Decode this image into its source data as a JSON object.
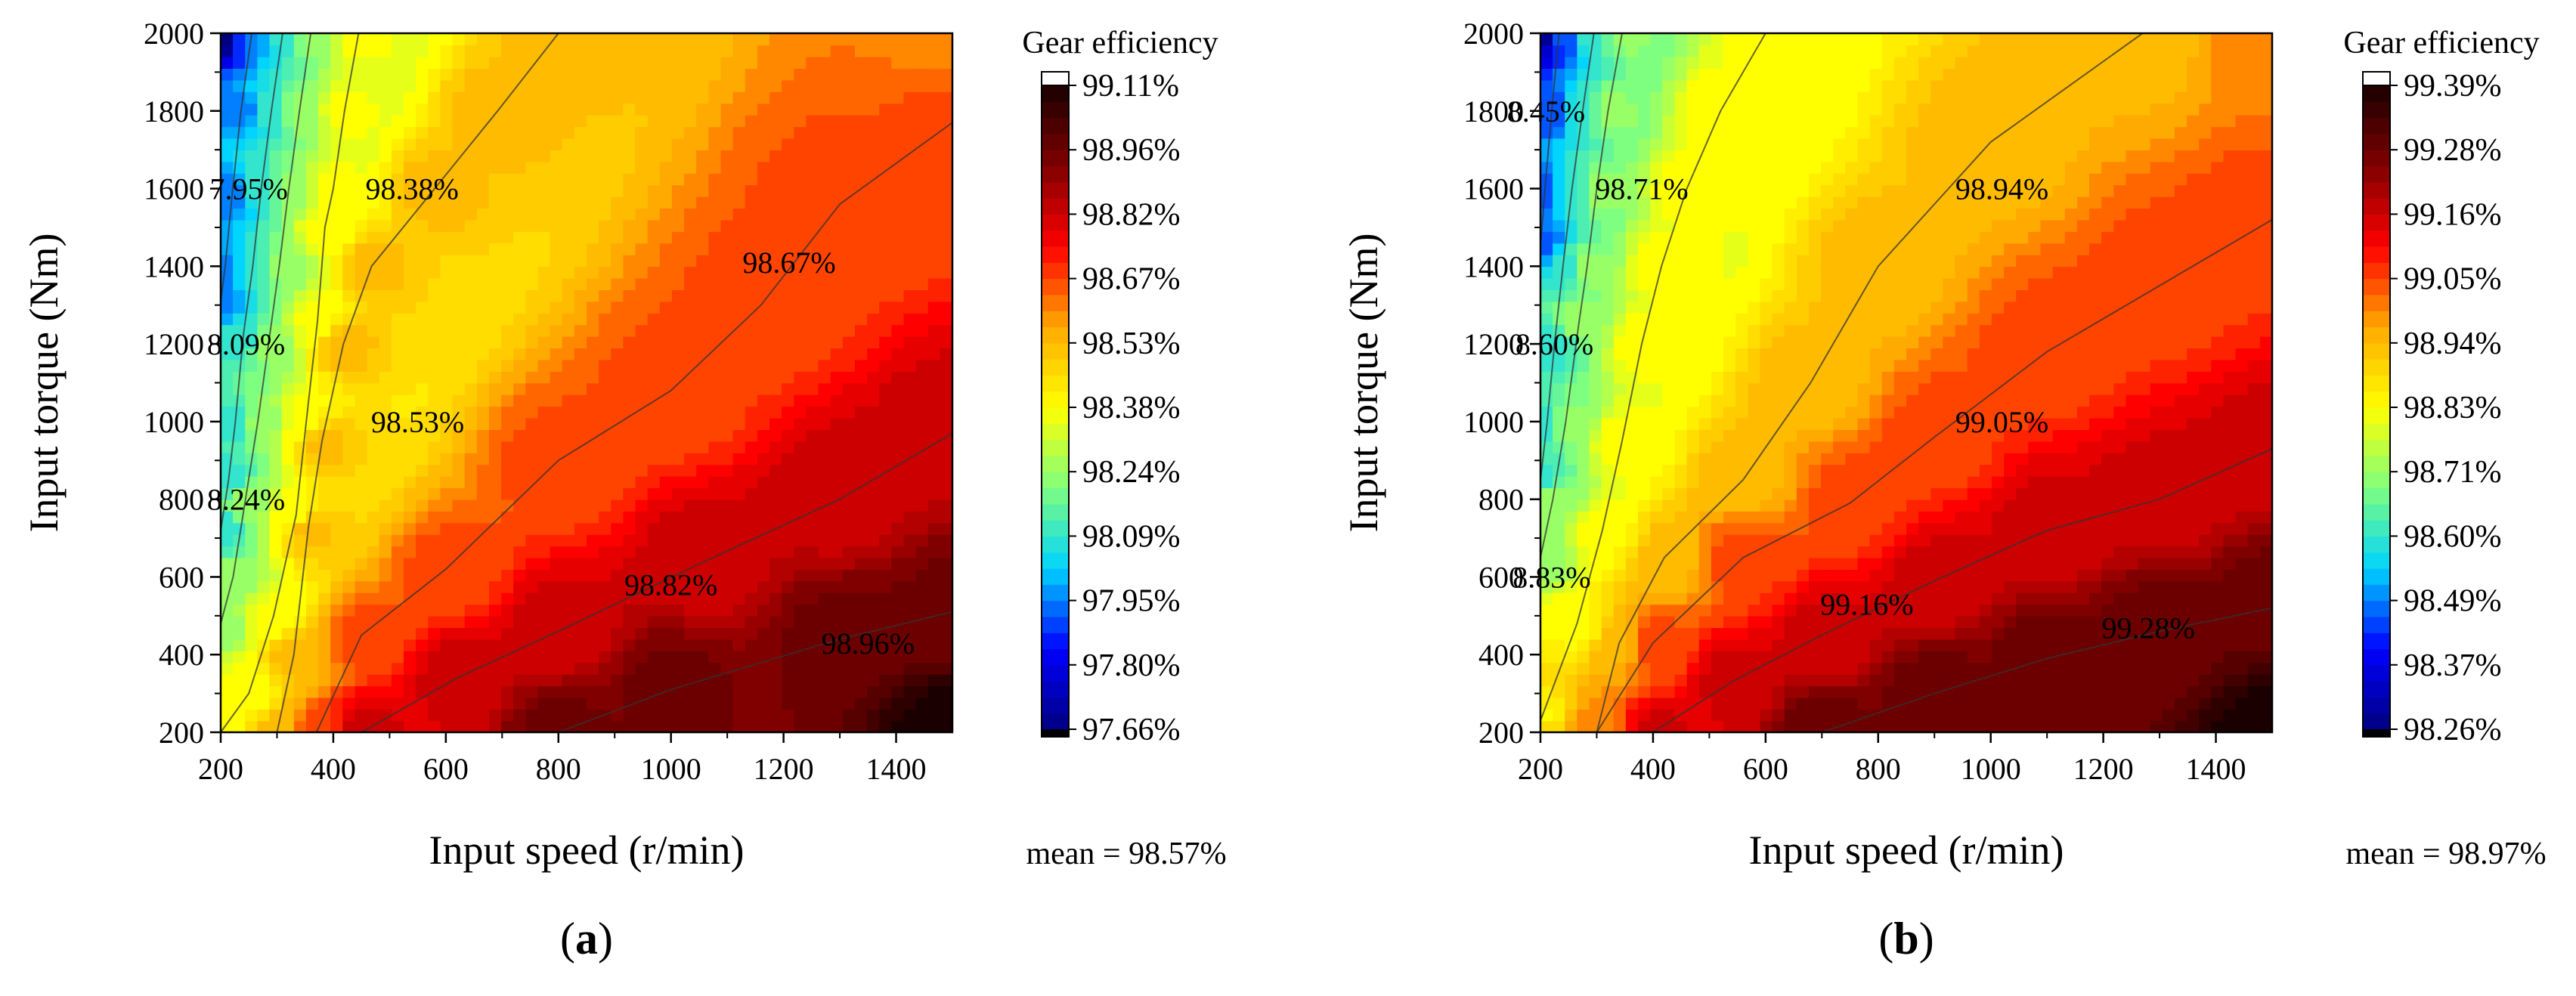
{
  "chart_data": [
    {
      "type": "heatmap",
      "panel_label": "a",
      "xlabel": "Input speed (r/min)",
      "ylabel": "Input torque (Nm)",
      "xlim": [
        200,
        1500
      ],
      "ylim": [
        200,
        2000
      ],
      "x_ticks": [
        200,
        400,
        600,
        800,
        1000,
        1200,
        1400
      ],
      "y_ticks": [
        200,
        400,
        600,
        800,
        1000,
        1200,
        1400,
        1600,
        1800,
        2000
      ],
      "colorbar_title": "Gear efficiency",
      "colorbar_ticks": [
        "99.11%",
        "98.96%",
        "98.82%",
        "98.67%",
        "98.53%",
        "98.38%",
        "98.24%",
        "98.09%",
        "97.95%",
        "97.80%",
        "97.66%"
      ],
      "zlim": [
        97.66,
        99.11
      ],
      "mean_text": "mean = 98.57%",
      "contours": [
        {
          "value": 97.95,
          "label": "7.95%",
          "points": [
            [
              255,
              2000
            ],
            [
              236,
              1800
            ],
            [
              220,
              1580
            ],
            [
              208,
              1400
            ],
            [
              200,
              1310
            ]
          ],
          "label_at": [
            250,
            1600
          ]
        },
        {
          "value": 98.09,
          "label": "8.09%",
          "points": [
            [
              310,
              2000
            ],
            [
              290,
              1800
            ],
            [
              272,
              1600
            ],
            [
              257,
              1400
            ],
            [
              240,
              1220
            ],
            [
              226,
              1000
            ],
            [
              214,
              850
            ],
            [
              200,
              720
            ]
          ],
          "label_at": [
            245,
            1200
          ]
        },
        {
          "value": 98.24,
          "label": "8.24%",
          "points": [
            [
              360,
              2000
            ],
            [
              340,
              1800
            ],
            [
              321,
              1600
            ],
            [
              304,
              1400
            ],
            [
              285,
              1200
            ],
            [
              266,
              1000
            ],
            [
              244,
              800
            ],
            [
              222,
              600
            ],
            [
              200,
              480
            ]
          ],
          "label_at": [
            245,
            800
          ]
        },
        {
          "value": 98.38,
          "label": "98.38%",
          "points": [
            [
              445,
              2000
            ],
            [
              420,
              1800
            ],
            [
              400,
              1600
            ],
            [
              385,
              1500
            ],
            [
              372,
              1260
            ],
            [
              352,
              1000
            ],
            [
              334,
              760
            ],
            [
              294,
              500
            ],
            [
              250,
              300
            ],
            [
              200,
              200
            ]
          ],
          "label_at": [
            540,
            1600
          ]
        },
        {
          "value": 98.53,
          "label": "98.53%",
          "points": [
            [
              800,
              2000
            ],
            [
              692,
              1800
            ],
            [
              580,
              1600
            ],
            [
              468,
              1400
            ],
            [
              418,
              1200
            ],
            [
              380,
              950
            ],
            [
              356,
              730
            ],
            [
              330,
              400
            ],
            [
              300,
              200
            ]
          ],
          "label_at": [
            550,
            1000
          ]
        },
        {
          "value": 98.67,
          "label": "98.67%",
          "points": [
            [
              1500,
              1770
            ],
            [
              1300,
              1560
            ],
            [
              1160,
              1300
            ],
            [
              1000,
              1080
            ],
            [
              800,
              900
            ],
            [
              600,
              620
            ],
            [
              450,
              450
            ],
            [
              370,
              200
            ]
          ],
          "label_at": [
            1210,
            1410
          ]
        },
        {
          "value": 98.82,
          "label": "98.82%",
          "points": [
            [
              1500,
              970
            ],
            [
              1300,
              800
            ],
            [
              1060,
              640
            ],
            [
              800,
              460
            ],
            [
              620,
              340
            ],
            [
              450,
              200
            ]
          ],
          "label_at": [
            1000,
            580
          ]
        },
        {
          "value": 98.96,
          "label": "98.96%",
          "points": [
            [
              1500,
              510
            ],
            [
              1300,
              440
            ],
            [
              1000,
              310
            ],
            [
              800,
              200
            ]
          ],
          "label_at": [
            1350,
            430
          ]
        }
      ],
      "color_field": {
        "model": "weighted inverse-distance interpolation between contour points; max 99.11 at (1500, 200), min 97.66 at (200, 2000)",
        "extremes": [
          {
            "x": 1500,
            "y": 200,
            "z": 99.11
          },
          {
            "x": 200,
            "y": 2000,
            "z": 97.66
          },
          {
            "x": 200,
            "y": 200,
            "z": 98.38
          },
          {
            "x": 1500,
            "y": 2000,
            "z": 98.6
          }
        ]
      }
    },
    {
      "type": "heatmap",
      "panel_label": "b",
      "xlabel": "Input speed (r/min)",
      "ylabel": "Input torque (Nm)",
      "xlim": [
        200,
        1500
      ],
      "ylim": [
        200,
        2000
      ],
      "x_ticks": [
        200,
        400,
        600,
        800,
        1000,
        1200,
        1400
      ],
      "y_ticks": [
        200,
        400,
        600,
        800,
        1000,
        1200,
        1400,
        1600,
        1800,
        2000
      ],
      "colorbar_title": "Gear efficiency",
      "colorbar_ticks": [
        "99.39%",
        "99.28%",
        "99.16%",
        "99.05%",
        "98.94%",
        "98.83%",
        "98.71%",
        "98.60%",
        "98.49%",
        "98.37%",
        "98.26%"
      ],
      "zlim": [
        98.26,
        99.39
      ],
      "mean_text": "mean = 98.97%",
      "contours": [
        {
          "value": 98.45,
          "label": "8.45%",
          "points": [
            [
              233,
              2000
            ],
            [
              220,
              1800
            ],
            [
              208,
              1600
            ],
            [
              200,
              1450
            ]
          ],
          "label_at": [
            210,
            1800
          ]
        },
        {
          "value": 98.6,
          "label": "8.60%",
          "points": [
            [
              295,
              2000
            ],
            [
              275,
              1800
            ],
            [
              256,
              1600
            ],
            [
              240,
              1400
            ],
            [
              225,
              1200
            ],
            [
              212,
              1000
            ],
            [
              200,
              850
            ]
          ],
          "label_at": [
            225,
            1200
          ]
        },
        {
          "value": 98.71,
          "label": "98.71%",
          "points": [
            [
              345,
              2000
            ],
            [
              320,
              1800
            ],
            [
              300,
              1600
            ],
            [
              283,
              1400
            ],
            [
              268,
              1250
            ],
            [
              245,
              1000
            ],
            [
              222,
              800
            ],
            [
              200,
              650
            ]
          ],
          "label_at": [
            380,
            1600
          ]
        },
        {
          "value": 98.83,
          "label": "8.83%",
          "points": [
            [
              600,
              2000
            ],
            [
              520,
              1800
            ],
            [
              460,
              1600
            ],
            [
              415,
              1400
            ],
            [
              380,
              1200
            ],
            [
              345,
              950
            ],
            [
              310,
              720
            ],
            [
              265,
              480
            ],
            [
              200,
              230
            ]
          ],
          "label_at": [
            220,
            600
          ]
        },
        {
          "value": 98.94,
          "label": "98.94%",
          "points": [
            [
              1270,
              2000
            ],
            [
              1000,
              1720
            ],
            [
              800,
              1400
            ],
            [
              680,
              1100
            ],
            [
              560,
              850
            ],
            [
              420,
              650
            ],
            [
              340,
              430
            ],
            [
              300,
              200
            ]
          ],
          "label_at": [
            1020,
            1600
          ]
        },
        {
          "value": 99.05,
          "label": "99.05%",
          "points": [
            [
              1500,
              1520
            ],
            [
              1300,
              1350
            ],
            [
              1100,
              1180
            ],
            [
              900,
              960
            ],
            [
              750,
              790
            ],
            [
              560,
              650
            ],
            [
              400,
              430
            ],
            [
              300,
              200
            ]
          ],
          "label_at": [
            1020,
            1000
          ]
        },
        {
          "value": 99.16,
          "label": "99.16%",
          "points": [
            [
              1500,
              930
            ],
            [
              1300,
              800
            ],
            [
              1100,
              720
            ],
            [
              900,
              590
            ],
            [
              700,
              450
            ],
            [
              540,
              330
            ],
            [
              400,
              200
            ]
          ],
          "label_at": [
            780,
            530
          ]
        },
        {
          "value": 99.28,
          "label": "99.28%",
          "points": [
            [
              1500,
              520
            ],
            [
              1300,
              460
            ],
            [
              1100,
              390
            ],
            [
              900,
              300
            ],
            [
              700,
              200
            ]
          ],
          "label_at": [
            1280,
            470
          ]
        }
      ],
      "color_field": {
        "model": "weighted inverse-distance interpolation between contour points; max 99.39 at (1500, 200), min 98.26 at (200, 2000)",
        "extremes": [
          {
            "x": 1500,
            "y": 200,
            "z": 99.39
          },
          {
            "x": 200,
            "y": 2000,
            "z": 98.26
          },
          {
            "x": 200,
            "y": 200,
            "z": 98.92
          },
          {
            "x": 1500,
            "y": 2000,
            "z": 99.0
          }
        ]
      }
    }
  ],
  "colormap": [
    "#000080",
    "#0000ff",
    "#00d4ff",
    "#7fff7f",
    "#ffff00",
    "#ffaa00",
    "#ff0000",
    "#800000",
    "#1a0000"
  ]
}
